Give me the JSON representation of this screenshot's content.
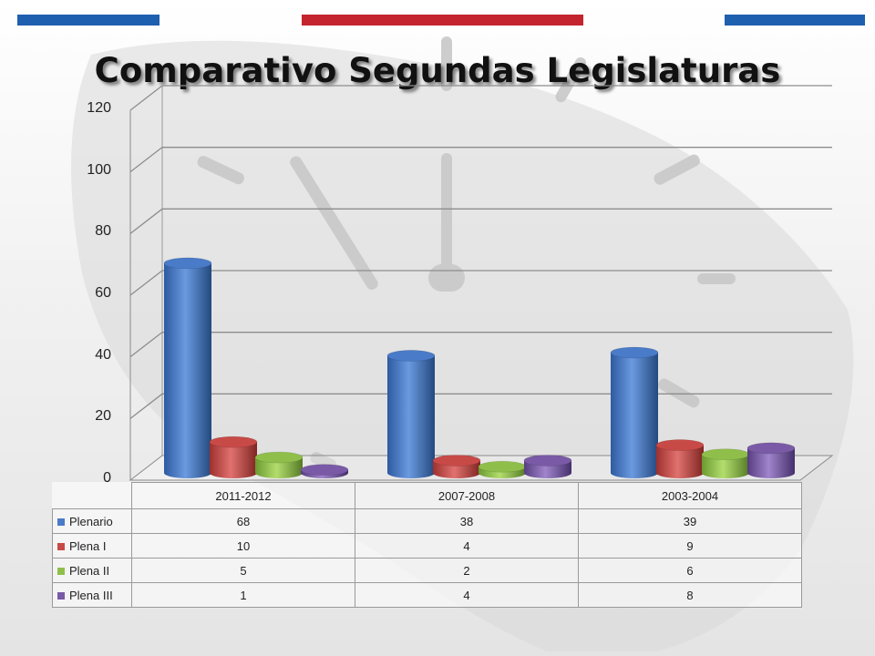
{
  "slide": {
    "title": "Comparativo Segundas Legislaturas",
    "stripe_colors": [
      "#1f5fb0",
      "#c4242e",
      "#1f5fb0"
    ]
  },
  "chart_data": {
    "type": "bar",
    "title": "Comparativo Segundas Legislaturas",
    "categories": [
      "2011-2012",
      "2007-2008",
      "2003-2004"
    ],
    "series": [
      {
        "name": "Plenario",
        "values": [
          68,
          38,
          39
        ],
        "color": "#4a7bc8"
      },
      {
        "name": "Plena I",
        "values": [
          10,
          4,
          9
        ],
        "color": "#c84a47"
      },
      {
        "name": "Plena II",
        "values": [
          5,
          2,
          6
        ],
        "color": "#8fbf4a"
      },
      {
        "name": "Plena III",
        "values": [
          1,
          4,
          8
        ],
        "color": "#7a5aa6"
      }
    ],
    "yticks": [
      "0",
      "20",
      "40",
      "60",
      "80",
      "100",
      "120"
    ],
    "ylim": [
      0,
      120
    ],
    "grid": true,
    "legend": "data-table"
  }
}
